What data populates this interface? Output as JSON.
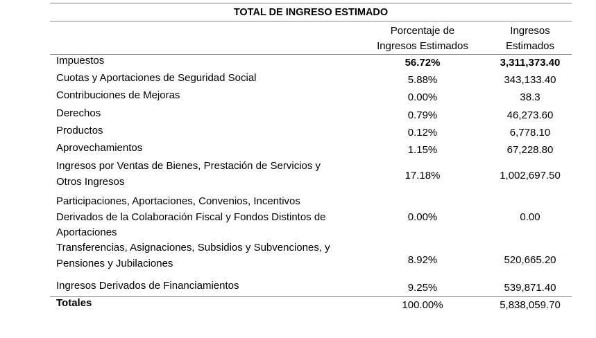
{
  "title": "TOTAL DE INGRESO ESTIMADO",
  "headers": {
    "percentage_line1": "Porcentaje de",
    "percentage_line2": "Ingresos Estimados",
    "amount_line1": "Ingresos",
    "amount_line2": "Estimados"
  },
  "rows": [
    {
      "label": "Impuestos",
      "percentage": "56.72%",
      "amount": "3,311,373.40",
      "bold_values": true
    },
    {
      "label": "Cuotas y Aportaciones de Seguridad Social",
      "percentage": "5.88%",
      "amount": "343,133.40"
    },
    {
      "label": "Contribuciones de Mejoras",
      "percentage": "0.00%",
      "amount": "38.3"
    },
    {
      "label": "Derechos",
      "percentage": "0.79%",
      "amount": "46,273.60"
    },
    {
      "label": "Productos",
      "percentage": "0.12%",
      "amount": "6,778.10"
    },
    {
      "label": "Aprovechamientos",
      "percentage": "1.15%",
      "amount": "67,228.80"
    },
    {
      "label_lines": [
        "Ingresos por Ventas de Bienes, Prestación de Servicios y",
        "Otros Ingresos"
      ],
      "percentage": "17.18%",
      "amount": "1,002,697.50"
    },
    {
      "label_lines": [
        "Participaciones, Aportaciones, Convenios, Incentivos",
        "Derivados de la Colaboración Fiscal y Fondos Distintos de",
        "Aportaciones"
      ],
      "percentage": "0.00%",
      "amount": "0.00"
    },
    {
      "label_lines": [
        "Transferencias, Asignaciones, Subsidios y Subvenciones, y",
        "Pensiones y Jubilaciones"
      ],
      "percentage": "8.92%",
      "amount": "520,665.20"
    },
    {
      "label": "Ingresos Derivados de Financiamientos",
      "percentage": "9.25%",
      "amount": "539,871.40"
    }
  ],
  "totals": {
    "label": "Totales",
    "percentage": "100.00%",
    "amount": "5,838,059.70"
  }
}
